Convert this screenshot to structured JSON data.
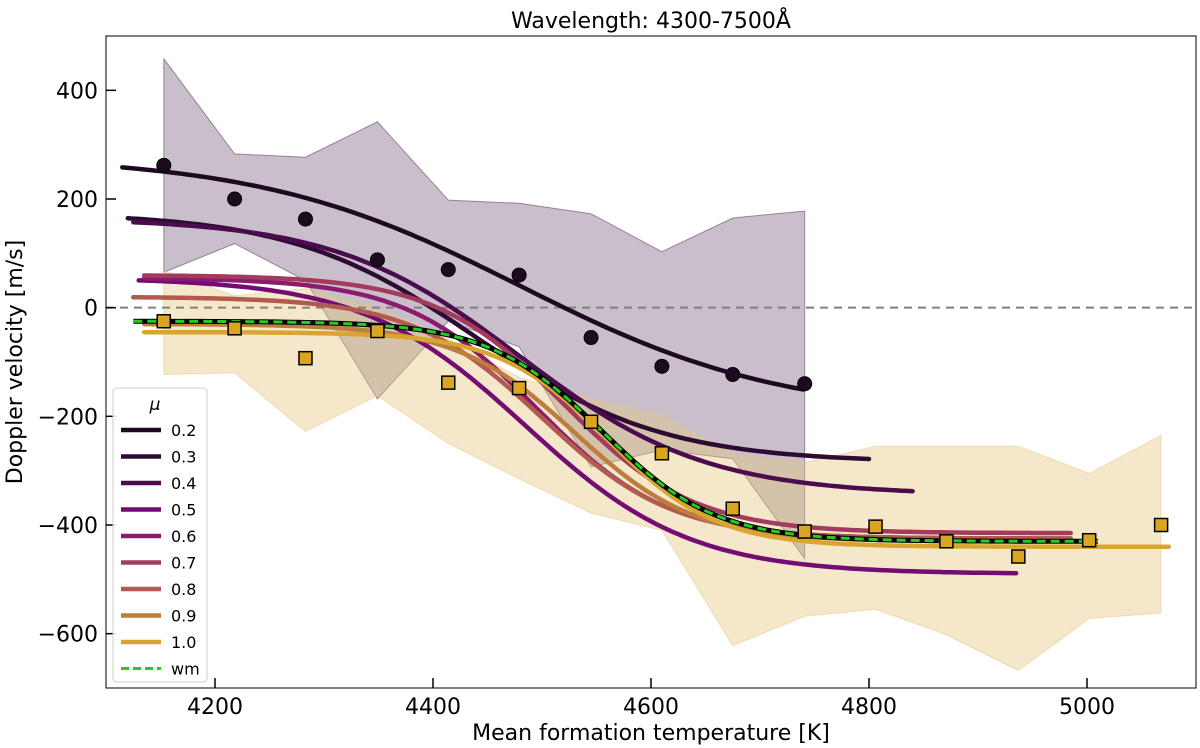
{
  "chart_data": {
    "type": "line",
    "title": "Wavelength: 4300-7500Å",
    "xlabel": "Mean formation temperature [K]",
    "ylabel": "Doppler velocity [m/s]",
    "xlim": [
      4100,
      5100
    ],
    "ylim": [
      -700,
      500
    ],
    "xticks": [
      4200,
      4400,
      4600,
      4800,
      5000
    ],
    "yticks": [
      -600,
      -400,
      -200,
      0,
      200,
      400
    ],
    "xtick_labels": [
      "4200",
      "4400",
      "4600",
      "4800",
      "5000"
    ],
    "ytick_labels": [
      "−600",
      "−400",
      "−200",
      "0",
      "200",
      "400"
    ],
    "reference_line": {
      "y": 0,
      "style": "dashed",
      "color": "#808080"
    },
    "legend": {
      "title": "μ",
      "location": "lower-left",
      "entries": [
        {
          "label": "0.2",
          "color": "#1d0a20"
        },
        {
          "label": "0.3",
          "color": "#2e0b33"
        },
        {
          "label": "0.4",
          "color": "#4a0c4e"
        },
        {
          "label": "0.5",
          "color": "#730c73"
        },
        {
          "label": "0.6",
          "color": "#8c1a6e"
        },
        {
          "label": "0.7",
          "color": "#a33b5f"
        },
        {
          "label": "0.8",
          "color": "#b05a50"
        },
        {
          "label": "0.9",
          "color": "#bd7d3c"
        },
        {
          "label": "1.0",
          "color": "#d9a52f"
        },
        {
          "label": "wm",
          "color": "#22cc22",
          "dashed": true
        }
      ]
    },
    "series": [
      {
        "name": "0.2",
        "color": "#1d0a20",
        "model": {
          "x0": 4480,
          "w": 120,
          "lo": -200,
          "hi": 280
        },
        "x_range": [
          4115,
          4740
        ]
      },
      {
        "name": "0.3",
        "color": "#2e0b33",
        "model": {
          "x0": 4440,
          "w": 85,
          "lo": -285,
          "hi": 175
        },
        "x_range": [
          4120,
          4800
        ]
      },
      {
        "name": "0.4",
        "color": "#4a0c4e",
        "model": {
          "x0": 4480,
          "w": 85,
          "lo": -345,
          "hi": 165
        },
        "x_range": [
          4125,
          4840
        ]
      },
      {
        "name": "0.5",
        "color": "#730c73",
        "model": {
          "x0": 4485,
          "w": 75,
          "lo": -490,
          "hi": 55
        },
        "x_range": [
          4130,
          4935
        ]
      },
      {
        "name": "0.6",
        "color": "#8c1a6e",
        "model": {
          "x0": 4495,
          "w": 60,
          "lo": -425,
          "hi": 55
        },
        "x_range": [
          4135,
          4985
        ]
      },
      {
        "name": "0.7",
        "color": "#a33b5f",
        "model": {
          "x0": 4520,
          "w": 60,
          "lo": -415,
          "hi": 60
        },
        "x_range": [
          4135,
          4985
        ]
      },
      {
        "name": "0.8",
        "color": "#b05a50",
        "model": {
          "x0": 4500,
          "w": 60,
          "lo": -425,
          "hi": 20
        },
        "x_range": [
          4125,
          4985
        ]
      },
      {
        "name": "0.9",
        "color": "#bd7d3c",
        "model": {
          "x0": 4530,
          "w": 55,
          "lo": -430,
          "hi": -30
        },
        "x_range": [
          4135,
          5005
        ]
      },
      {
        "name": "1.0",
        "color": "#d9a52f",
        "model": {
          "x0": 4560,
          "w": 50,
          "lo": -440,
          "hi": -45
        },
        "x_range": [
          4135,
          5075
        ]
      },
      {
        "name": "wm",
        "color": "#22cc22",
        "dashed": true,
        "model": {
          "x0": 4555,
          "w": 52,
          "lo": -430,
          "hi": -25
        },
        "x_range": [
          4125,
          5010
        ]
      }
    ],
    "scatter": [
      {
        "name": "mu 0.2 points",
        "marker": "circle",
        "color": "#1d0a20",
        "x": [
          4153,
          4218,
          4283,
          4349,
          4414,
          4479,
          4545,
          4610,
          4675,
          4741
        ],
        "y": [
          262,
          200,
          163,
          88,
          70,
          60,
          -55,
          -108,
          -123,
          -140
        ]
      },
      {
        "name": "mu 1.0 points",
        "marker": "square",
        "color": "#daa520",
        "x": [
          4153,
          4218,
          4283,
          4349,
          4414,
          4479,
          4545,
          4610,
          4675,
          4741,
          4806,
          4871,
          4937,
          5002,
          5068
        ],
        "y": [
          -25,
          -38,
          -93,
          -43,
          -138,
          -148,
          -210,
          -268,
          -370,
          -412,
          -403,
          -430,
          -458,
          -428,
          -400
        ]
      }
    ],
    "bands": [
      {
        "name": "mu 0.2 spread",
        "color": "#4b2a50",
        "opacity": 0.3,
        "x": [
          4153,
          4218,
          4283,
          4349,
          4414,
          4479,
          4545,
          4610,
          4675,
          4741
        ],
        "upper": [
          458,
          283,
          277,
          342,
          198,
          192,
          173,
          103,
          165,
          178
        ],
        "lower": [
          65,
          118,
          50,
          -168,
          -25,
          -72,
          -293,
          -262,
          -278,
          -462
        ]
      },
      {
        "name": "mu 1.0 spread",
        "color": "#e8c680",
        "opacity": 0.42,
        "x": [
          4153,
          4218,
          4283,
          4349,
          4414,
          4479,
          4545,
          4610,
          4675,
          4741,
          4806,
          4871,
          4937,
          5002,
          5068
        ],
        "upper": [
          68,
          22,
          35,
          0,
          -58,
          -128,
          -168,
          -198,
          -270,
          -285,
          -255,
          -255,
          -255,
          -305,
          -235
        ],
        "lower": [
          -123,
          -120,
          -228,
          -162,
          -250,
          -315,
          -378,
          -410,
          -622,
          -568,
          -555,
          -602,
          -668,
          -572,
          -562
        ]
      }
    ]
  }
}
